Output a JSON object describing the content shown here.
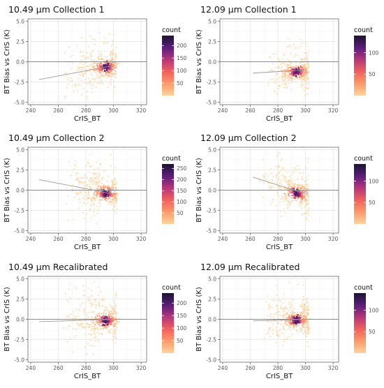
{
  "chart_data": [
    {
      "type": "heatmap",
      "title": "10.49 µm Collection 1",
      "xlabel": "CrIS_BT",
      "ylabel": "BT Bias vs CrIS (K)",
      "xlim": [
        238,
        324
      ],
      "ylim": [
        -5.3,
        5.3
      ],
      "x_ticks": [
        240,
        260,
        280,
        300,
        320
      ],
      "y_ticks": [
        5.0,
        2.5,
        0.0,
        -2.5,
        -5.0
      ],
      "y_tick_labels": [
        "5.0",
        "2.5",
        "0.0",
        "-2.5",
        "-5.0"
      ],
      "grid": true,
      "reference_line_y": 0,
      "fit_line": {
        "x": [
          246,
          299
        ],
        "y": [
          -2.2,
          -0.5
        ]
      },
      "cloud": {
        "x_range": [
          262,
          302
        ],
        "core_x": 294,
        "core_y": -0.6,
        "slope": 0.03,
        "spread_y": 0.9
      },
      "legend": {
        "title": "count",
        "ticks": [
          50,
          100,
          150,
          200
        ],
        "max": 240,
        "placement": "right"
      }
    },
    {
      "type": "heatmap",
      "title": "12.09 µm Collection 1",
      "xlabel": "CrIS_BT",
      "ylabel": "BT Bias vs CrIS (K)",
      "xlim": [
        238,
        324
      ],
      "ylim": [
        -5.3,
        5.3
      ],
      "x_ticks": [
        240,
        260,
        280,
        300,
        320
      ],
      "y_ticks": [
        5.0,
        2.5,
        0.0,
        -2.5,
        -5.0
      ],
      "y_tick_labels": [
        "5.0",
        "2.5",
        "0.0",
        "-2.5",
        "-5.0"
      ],
      "grid": true,
      "reference_line_y": 0,
      "fit_line": {
        "x": [
          262,
          301
        ],
        "y": [
          -1.4,
          -1.0
        ]
      },
      "cloud": {
        "x_range": [
          270,
          302
        ],
        "core_x": 293,
        "core_y": -1.2,
        "slope": 0.01,
        "spread_y": 0.7
      },
      "legend": {
        "title": "count",
        "ticks": [
          50,
          100
        ],
        "max": 140,
        "placement": "right"
      }
    },
    {
      "type": "heatmap",
      "title": "10.49 µm Collection 2",
      "xlabel": "CrIS_BT",
      "ylabel": "BT Bias vs CrIS (K)",
      "xlim": [
        238,
        324
      ],
      "ylim": [
        -5.3,
        5.3
      ],
      "x_ticks": [
        240,
        260,
        280,
        300,
        320
      ],
      "y_ticks": [
        5.0,
        2.5,
        0.0,
        -2.5,
        -5.0
      ],
      "y_tick_labels": [
        "5.0",
        "2.5",
        "0.0",
        "-2.5",
        "-5.0"
      ],
      "grid": true,
      "reference_line_y": 0,
      "fit_line": {
        "x": [
          246,
          301
        ],
        "y": [
          1.3,
          -0.5
        ]
      },
      "cloud": {
        "x_range": [
          262,
          302
        ],
        "core_x": 294,
        "core_y": -0.3,
        "slope": -0.03,
        "spread_y": 0.9
      },
      "legend": {
        "title": "count",
        "ticks": [
          50,
          100,
          150,
          200,
          250
        ],
        "max": 270,
        "placement": "right"
      }
    },
    {
      "type": "heatmap",
      "title": "12.09 µm Collection 2",
      "xlabel": "CrIS_BT",
      "ylabel": "BT Bias vs CrIS (K)",
      "xlim": [
        238,
        324
      ],
      "ylim": [
        -5.3,
        5.3
      ],
      "x_ticks": [
        240,
        260,
        280,
        300,
        320
      ],
      "y_ticks": [
        5.0,
        2.5,
        0.0,
        -2.5,
        -5.0
      ],
      "y_tick_labels": [
        "5.0",
        "2.5",
        "0.0",
        "-2.5",
        "-5.0"
      ],
      "grid": true,
      "reference_line_y": 0,
      "fit_line": {
        "x": [
          262,
          301
        ],
        "y": [
          1.6,
          -0.5
        ]
      },
      "cloud": {
        "x_range": [
          264,
          302
        ],
        "core_x": 293,
        "core_y": -0.3,
        "slope": -0.06,
        "spread_y": 0.8
      },
      "legend": {
        "title": "count",
        "ticks": [
          50,
          100
        ],
        "max": 140,
        "placement": "right"
      }
    },
    {
      "type": "heatmap",
      "title": "10.49 µm Recalibrated",
      "xlabel": "CrIS_BT",
      "ylabel": "BT Bias vs CrIS (K)",
      "xlim": [
        238,
        324
      ],
      "ylim": [
        -5.3,
        5.3
      ],
      "x_ticks": [
        240,
        260,
        280,
        300,
        320
      ],
      "y_ticks": [
        5.0,
        2.5,
        0.0,
        -2.5,
        -5.0
      ],
      "y_tick_labels": [
        "5.0",
        "2.5",
        "0.0",
        "-2.5",
        "-5.0"
      ],
      "grid": true,
      "reference_line_y": 0,
      "fit_line": {
        "x": [
          246,
          301
        ],
        "y": [
          -0.3,
          0.0
        ]
      },
      "cloud": {
        "x_range": [
          262,
          302
        ],
        "core_x": 294,
        "core_y": -0.1,
        "slope": 0.005,
        "spread_y": 0.9
      },
      "legend": {
        "title": "count",
        "ticks": [
          50,
          100,
          150,
          200
        ],
        "max": 240,
        "placement": "right"
      }
    },
    {
      "type": "heatmap",
      "title": "12.09 µm Recalibrated",
      "xlabel": "CrIS_BT",
      "ylabel": "BT Bias vs CrIS (K)",
      "xlim": [
        238,
        324
      ],
      "ylim": [
        -5.3,
        5.3
      ],
      "x_ticks": [
        240,
        260,
        280,
        300,
        320
      ],
      "y_ticks": [
        5.0,
        2.5,
        0.0,
        -2.5,
        -5.0
      ],
      "y_tick_labels": [
        "5.0",
        "2.5",
        "0.0",
        "-2.5",
        "-5.0"
      ],
      "grid": true,
      "reference_line_y": 0,
      "fit_line": {
        "x": [
          262,
          301
        ],
        "y": [
          -0.2,
          0.0
        ]
      },
      "cloud": {
        "x_range": [
          266,
          302
        ],
        "core_x": 293,
        "core_y": -0.05,
        "slope": 0.005,
        "spread_y": 0.8
      },
      "legend": {
        "title": "count",
        "ticks": [
          50,
          100
        ],
        "max": 140,
        "placement": "right"
      }
    }
  ]
}
